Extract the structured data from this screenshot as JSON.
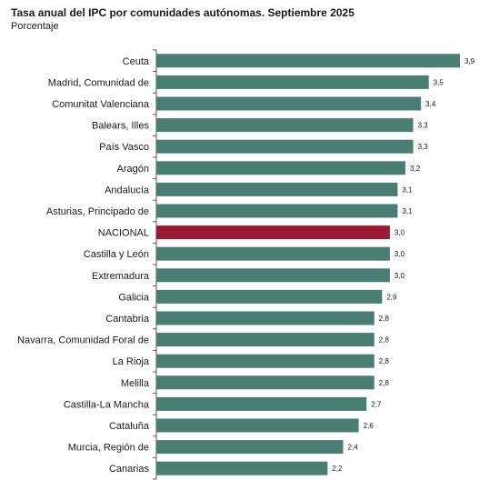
{
  "title": "Tasa anual del IPC por comunidades autónomas. Septiembre 2025",
  "subtitle": "Porcentaje",
  "colors": {
    "bar": "#4a7e73",
    "highlight": "#9b1b35",
    "axis": "#555555"
  },
  "chart_data": {
    "type": "bar",
    "orientation": "horizontal",
    "title": "Tasa anual del IPC por comunidades autónomas. Septiembre 2025",
    "subtitle": "Porcentaje",
    "xlim": [
      0,
      3.9
    ],
    "grid": false,
    "highlight": "NACIONAL",
    "categories": [
      "Ceuta",
      "Madrid, Comunidad de",
      "Comunitat Valenciana",
      "Balears, Illes",
      "País Vasco",
      "Aragón",
      "Andalucía",
      "Asturias, Principado de",
      "NACIONAL",
      "Castilla y León",
      "Extremadura",
      "Galicia",
      "Cantabria",
      "Navarra, Comunidad Foral de",
      "La Rioja",
      "Melilla",
      "Castilla-La Mancha",
      "Cataluña",
      "Murcia, Región de",
      "Canarias"
    ],
    "values": [
      3.9,
      3.5,
      3.4,
      3.3,
      3.3,
      3.2,
      3.1,
      3.1,
      3.0,
      3.0,
      3.0,
      2.9,
      2.8,
      2.8,
      2.8,
      2.8,
      2.7,
      2.6,
      2.4,
      2.2
    ],
    "value_labels": [
      "3,9",
      "3,5",
      "3,4",
      "3,3",
      "3,3",
      "3,2",
      "3,1",
      "3,1",
      "3,0",
      "3,0",
      "3,0",
      "2,9",
      "2,8",
      "2,8",
      "2,8",
      "2,8",
      "2,7",
      "2,6",
      "2,4",
      "2,2"
    ]
  }
}
